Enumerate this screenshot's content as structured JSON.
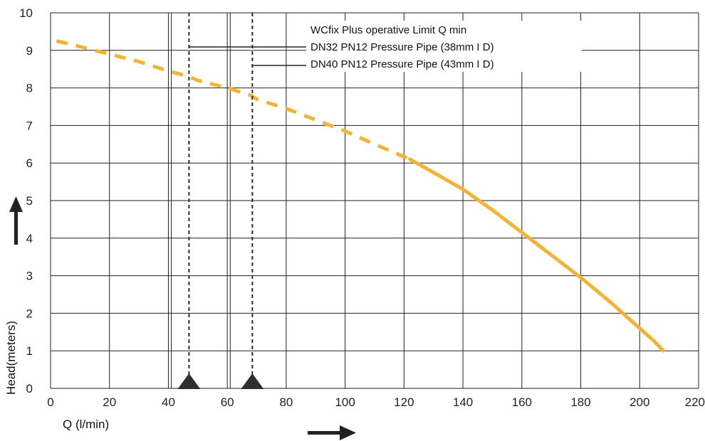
{
  "chart_data": {
    "type": "line",
    "title": "",
    "xlabel": "Q (l/min)",
    "ylabel": "Head(meters)",
    "xlim": [
      0,
      220
    ],
    "ylim": [
      0,
      10
    ],
    "x_ticks": [
      0,
      20,
      40,
      60,
      80,
      100,
      120,
      140,
      160,
      180,
      200,
      220
    ],
    "y_ticks": [
      0,
      1,
      2,
      3,
      4,
      5,
      6,
      7,
      8,
      9,
      10
    ],
    "x_gridlines": [
      0,
      20,
      40,
      41,
      60,
      61,
      80,
      100,
      120,
      140,
      160,
      180,
      200,
      220
    ],
    "grid": true,
    "series": [
      {
        "style": "dashed",
        "color": "#F5B335",
        "x": [
          2,
          10,
          20,
          30,
          40,
          47,
          50,
          60,
          68,
          70,
          80,
          90,
          100,
          110,
          122
        ],
        "y": [
          9.25,
          9.1,
          8.9,
          8.7,
          8.45,
          8.3,
          8.2,
          8.0,
          7.8,
          7.7,
          7.45,
          7.15,
          6.85,
          6.5,
          6.1
        ]
      },
      {
        "style": "solid",
        "color": "#F5B335",
        "x": [
          122,
          130,
          140,
          150,
          160,
          170,
          180,
          190,
          200,
          205,
          208
        ],
        "y": [
          6.1,
          5.75,
          5.3,
          4.75,
          4.15,
          3.55,
          2.95,
          2.3,
          1.6,
          1.25,
          1.0
        ]
      }
    ],
    "reference_lines": [
      {
        "x": 47,
        "style": "dashed",
        "label": "DN32 PN12 Pressure Pipe (38mm I D)"
      },
      {
        "x": 68.5,
        "style": "dashed",
        "label": "DN40 PN12 Pressure Pipe (43mm I D)"
      }
    ],
    "annotations": {
      "header": "WCfix Plus operative Limit Q min"
    },
    "line_color": "#F5B335",
    "marker_color": "#2f2f2f"
  }
}
